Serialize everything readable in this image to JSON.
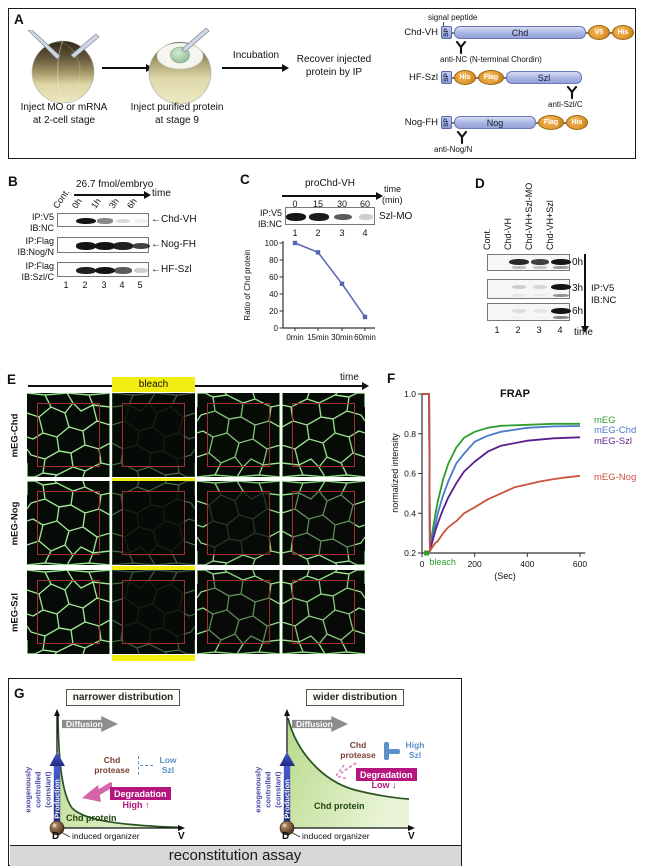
{
  "colors": {
    "bleach_yellow": "#f2ee12",
    "magenta": "#b5157f",
    "pink_arrow": "#d565ab",
    "szl_blue": "#5b8fc9",
    "production_blue": "#2c3c9e",
    "mesh_green": "#7ed87e",
    "series": {
      "mEG": "#2f9e2f",
      "mEG-Chd": "#4a7bc8",
      "mEG-Szl": "#5a1e8e",
      "mEG-Nog": "#cc5340"
    }
  },
  "panelA": {
    "label": "A",
    "step1": [
      "Inject MO or mRNA",
      "at 2-cell stage"
    ],
    "step2": [
      "Inject purified protein",
      "at stage 9"
    ],
    "incubation": "Incubation",
    "recover": [
      "Recover injected",
      "protein by IP"
    ],
    "signal_peptide": "signal peptide",
    "constructs": [
      {
        "name": "Chd-VH",
        "antibody": "anti-NC (N-terminal Chordin)"
      },
      {
        "name": "HF-Szl",
        "antibody": "anti-Szl/C"
      },
      {
        "name": "Nog-FH",
        "antibody": "anti-Nog/N"
      }
    ],
    "tags": {
      "sp": "SP",
      "chd": "Chd",
      "v5": "V5",
      "his": "His",
      "flag": "Flag",
      "szl": "Szl",
      "nog": "Nog"
    }
  },
  "panelB": {
    "label": "B",
    "header": "26.7 fmol/embryo",
    "time_label": "time",
    "lane_labels": [
      "Cont.",
      "0h",
      "1h",
      "3h",
      "6h"
    ],
    "lane_numbers": [
      "1",
      "2",
      "3",
      "4",
      "5"
    ],
    "blots": [
      {
        "ip": "IP:V5",
        "ib": "IB:NC",
        "band_label": "←Chd-VH",
        "bands": [
          0,
          1,
          0.5,
          0.15,
          0.06
        ]
      },
      {
        "ip": "IP:Flag",
        "ib": "IB:Nog/N",
        "band_label": "←Nog-FH",
        "bands": [
          0,
          1,
          1,
          0.95,
          0.8
        ]
      },
      {
        "ip": "IP:Flag",
        "ib": "IB:Szl/C",
        "band_label": "←HF-Szl",
        "bands": [
          0,
          0.95,
          1,
          0.7,
          0.2
        ]
      }
    ]
  },
  "panelC": {
    "label": "C",
    "header": "proChd-VH",
    "time_label": "time",
    "time_unit": "(min)",
    "times": [
      "0",
      "15",
      "30",
      "60"
    ],
    "ip": "IP:V5",
    "ib": "IB:NC",
    "mo_label": "Szl-MO",
    "bands": [
      1,
      0.97,
      0.7,
      0.2
    ],
    "lane_numbers": [
      "1",
      "2",
      "3",
      "4"
    ]
  },
  "panelD": {
    "label": "D",
    "lane_labels": [
      "Cont.",
      "Chd-VH",
      "Chd-VH+Szl-MO",
      "Chd-VH+Szl"
    ],
    "lane_numbers": [
      "1",
      "2",
      "3",
      "4"
    ],
    "ip": "IP:V5",
    "ib": "IB:NC",
    "time_label": "time",
    "rows": [
      {
        "time": "0h",
        "bands": [
          0,
          0.9,
          0.8,
          1
        ],
        "sub": [
          0,
          0.25,
          0.2,
          0.4
        ]
      },
      {
        "time": "3h",
        "bands": [
          0,
          0.18,
          0.14,
          1
        ],
        "sub": [
          0,
          0.06,
          0.05,
          0.45
        ]
      },
      {
        "time": "6h",
        "bands": [
          0,
          0.1,
          0.07,
          1
        ],
        "sub": [
          0,
          0.04,
          0.03,
          0.5
        ]
      }
    ]
  },
  "panelE": {
    "label": "E",
    "time_label": "time",
    "bleach_label": "bleach",
    "rows": [
      {
        "label": "mEG-Chd",
        "cells": [
          {
            "inner": 1,
            "outer": 1
          },
          {
            "inner": 0.07,
            "outer": 0.3
          },
          {
            "inner": 0.8,
            "outer": 0.95
          },
          {
            "inner": 0.95,
            "outer": 1
          }
        ]
      },
      {
        "label": "mEG-Nog",
        "cells": [
          {
            "inner": 1,
            "outer": 1
          },
          {
            "inner": 0.07,
            "outer": 0.3
          },
          {
            "inner": 0.18,
            "outer": 0.85
          },
          {
            "inner": 0.55,
            "outer": 0.9
          }
        ]
      },
      {
        "label": "mEG-Szl",
        "cells": [
          {
            "inner": 1,
            "outer": 1
          },
          {
            "inner": 0.07,
            "outer": 0.3
          },
          {
            "inner": 0.55,
            "outer": 0.88
          },
          {
            "inner": 0.85,
            "outer": 0.95
          }
        ]
      }
    ]
  },
  "panelF": {
    "label": "F"
  },
  "panelG": {
    "label": "G",
    "footer": "reconstitution assay",
    "left": {
      "title": "narrower distribution",
      "diffusion": "Diffusion",
      "production": "Production",
      "exo": [
        "exogenously",
        "controlled",
        "(constant)"
      ],
      "protease": [
        "Chd",
        "protease"
      ],
      "szl": [
        "Low",
        "Szl"
      ],
      "degradation": "Degradation",
      "level": "High ↑",
      "protein": "Chd protein",
      "organizer": "induced organizer",
      "d": "D",
      "v": "V"
    },
    "right": {
      "title": "wider distribution",
      "diffusion": "Diffusion",
      "production": "Production",
      "exo": [
        "exogenously",
        "controlled",
        "(constant)"
      ],
      "protease": [
        "Chd",
        "protease"
      ],
      "szl": [
        "High",
        "Szl"
      ],
      "degradation": "Degradation",
      "level": "Low ↓",
      "protein": "Chd protein",
      "organizer": "induced organizer",
      "d": "D",
      "v": "V"
    }
  },
  "chart_data": [
    {
      "id": "chd-protein-decay",
      "type": "line",
      "title": "",
      "xlabel": "",
      "ylabel": "Ratio of Chd protein",
      "categories": [
        "0min",
        "15min",
        "30min",
        "60min"
      ],
      "values": [
        100,
        89,
        52,
        13
      ],
      "ylim": [
        0,
        100
      ],
      "yticks": [
        0,
        20,
        40,
        60,
        80,
        100
      ],
      "color": "#5566b0",
      "marker": "square",
      "grid": false
    },
    {
      "id": "frap",
      "type": "line",
      "title": "FRAP",
      "xlabel": "(Sec)",
      "ylabel": "normalized intensity",
      "xlim": [
        0,
        600
      ],
      "ylim": [
        0.2,
        1.0
      ],
      "xticks": [
        0,
        200,
        400,
        600
      ],
      "yticks": [
        0.2,
        0.4,
        0.6,
        0.8,
        1.0
      ],
      "annotation": "bleach",
      "legend_position": "right",
      "grid": false,
      "series": [
        {
          "name": "mEG",
          "color": "#2f9e2f",
          "points": [
            [
              0,
              1
            ],
            [
              27,
              1
            ],
            [
              30,
              0.21
            ],
            [
              40,
              0.31
            ],
            [
              50,
              0.39
            ],
            [
              60,
              0.46
            ],
            [
              80,
              0.57
            ],
            [
              100,
              0.65
            ],
            [
              130,
              0.73
            ],
            [
              160,
              0.78
            ],
            [
              200,
              0.81
            ],
            [
              250,
              0.83
            ],
            [
              300,
              0.84
            ],
            [
              400,
              0.845
            ],
            [
              500,
              0.85
            ],
            [
              600,
              0.85
            ]
          ]
        },
        {
          "name": "mEG-Chd",
          "color": "#4a7bc8",
          "points": [
            [
              0,
              1
            ],
            [
              27,
              1
            ],
            [
              30,
              0.21
            ],
            [
              40,
              0.28
            ],
            [
              50,
              0.34
            ],
            [
              60,
              0.4
            ],
            [
              80,
              0.49
            ],
            [
              100,
              0.56
            ],
            [
              130,
              0.65
            ],
            [
              160,
              0.7
            ],
            [
              200,
              0.76
            ],
            [
              250,
              0.79
            ],
            [
              300,
              0.81
            ],
            [
              400,
              0.83
            ],
            [
              500,
              0.837
            ],
            [
              600,
              0.839
            ]
          ]
        },
        {
          "name": "mEG-Szl",
          "color": "#5a1e8e",
          "points": [
            [
              0,
              1
            ],
            [
              27,
              1
            ],
            [
              30,
              0.21
            ],
            [
              40,
              0.26
            ],
            [
              50,
              0.31
            ],
            [
              60,
              0.35
            ],
            [
              80,
              0.42
            ],
            [
              100,
              0.48
            ],
            [
              130,
              0.55
            ],
            [
              160,
              0.61
            ],
            [
              200,
              0.66
            ],
            [
              250,
              0.71
            ],
            [
              300,
              0.74
            ],
            [
              400,
              0.765
            ],
            [
              500,
              0.777
            ],
            [
              600,
              0.782
            ]
          ]
        },
        {
          "name": "mEG-Nog",
          "color": "#cc5340",
          "points": [
            [
              0,
              1
            ],
            [
              27,
              1
            ],
            [
              30,
              0.21
            ],
            [
              40,
              0.23
            ],
            [
              50,
              0.25
            ],
            [
              60,
              0.26
            ],
            [
              80,
              0.3
            ],
            [
              100,
              0.33
            ],
            [
              130,
              0.36
            ],
            [
              160,
              0.4
            ],
            [
              200,
              0.43
            ],
            [
              250,
              0.47
            ],
            [
              300,
              0.5
            ],
            [
              350,
              0.53
            ],
            [
              400,
              0.545
            ],
            [
              450,
              0.56
            ],
            [
              500,
              0.572
            ],
            [
              550,
              0.581
            ],
            [
              600,
              0.588
            ]
          ]
        }
      ]
    }
  ]
}
